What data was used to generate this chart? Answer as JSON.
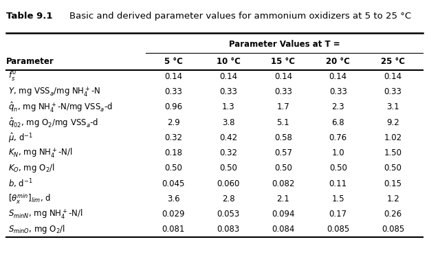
{
  "title_bold": "Table 9.1",
  "title_rest": "    Basic and derived parameter values for ammonium oxidizers at 5 to 25 °C",
  "col_header_main": "Parameter Values at T =",
  "col_headers": [
    "Parameter",
    "5 °C",
    "10 °C",
    "15 °C",
    "20 °C",
    "25 °C"
  ],
  "rows": [
    [
      "$f_s^0$",
      "0.14",
      "0.14",
      "0.14",
      "0.14",
      "0.14"
    ],
    [
      "$Y$, mg VSS$_a$/mg NH$_4^+$-N",
      "0.33",
      "0.33",
      "0.33",
      "0.33",
      "0.33"
    ],
    [
      "$\\hat{q}_n$, mg NH$_4^+$-N/mg VSS$_a$-d",
      "0.96",
      "1.3",
      "1.7",
      "2.3",
      "3.1"
    ],
    [
      "$\\hat{q}_{02}$, mg O$_2$/mg VSS$_a$-d",
      "2.9",
      "3.8",
      "5.1",
      "6.8",
      "9.2"
    ],
    [
      "$\\hat{\\mu}$, d$^{-1}$",
      "0.32",
      "0.42",
      "0.58",
      "0.76",
      "1.02"
    ],
    [
      "$K_N$, mg NH$_4^+$-N/l",
      "0.18",
      "0.32",
      "0.57",
      "1.0",
      "1.50"
    ],
    [
      "$K_O$, mg O$_2$/l",
      "0.50",
      "0.50",
      "0.50",
      "0.50",
      "0.50"
    ],
    [
      "$b$, d$^{-1}$",
      "0.045",
      "0.060",
      "0.082",
      "0.11",
      "0.15"
    ],
    [
      "$[\\theta_x^{min}]_{lim}$, d",
      "3.6",
      "2.8",
      "2.1",
      "1.5",
      "1.2"
    ],
    [
      "$S_{min N}$, mg NH$_4^+$-N/l",
      "0.029",
      "0.053",
      "0.094",
      "0.17",
      "0.26"
    ],
    [
      "$S_{min O}$, mg O$_2$/l",
      "0.081",
      "0.083",
      "0.084",
      "0.085",
      "0.085"
    ]
  ],
  "figsize": [
    6.24,
    3.71
  ],
  "dpi": 100,
  "bg_color": "#ffffff",
  "text_color": "#000000",
  "fontsize": 8.5,
  "title_fontsize": 9.5,
  "header_fontsize": 8.5
}
